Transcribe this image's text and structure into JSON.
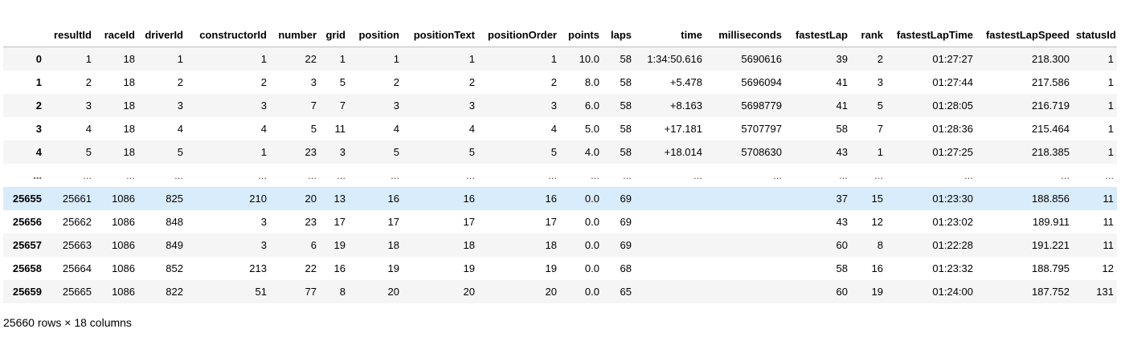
{
  "table": {
    "columns": [
      "",
      "resultId",
      "raceId",
      "driverId",
      "constructorId",
      "number",
      "grid",
      "position",
      "positionText",
      "positionOrder",
      "points",
      "laps",
      "time",
      "milliseconds",
      "fastestLap",
      "rank",
      "fastestLapTime",
      "fastestLapSpeed",
      "statusId"
    ],
    "rows": [
      [
        "0",
        "1",
        "18",
        "1",
        "1",
        "22",
        "1",
        "1",
        "1",
        "1",
        "10.0",
        "58",
        "1:34:50.616",
        "5690616",
        "39",
        "2",
        "01:27:27",
        "218.300",
        "1"
      ],
      [
        "1",
        "2",
        "18",
        "2",
        "2",
        "3",
        "5",
        "2",
        "2",
        "2",
        "8.0",
        "58",
        "+5.478",
        "5696094",
        "41",
        "3",
        "01:27:44",
        "217.586",
        "1"
      ],
      [
        "2",
        "3",
        "18",
        "3",
        "3",
        "7",
        "7",
        "3",
        "3",
        "3",
        "6.0",
        "58",
        "+8.163",
        "5698779",
        "41",
        "5",
        "01:28:05",
        "216.719",
        "1"
      ],
      [
        "3",
        "4",
        "18",
        "4",
        "4",
        "5",
        "11",
        "4",
        "4",
        "4",
        "5.0",
        "58",
        "+17.181",
        "5707797",
        "58",
        "7",
        "01:28:36",
        "215.464",
        "1"
      ],
      [
        "4",
        "5",
        "18",
        "5",
        "1",
        "23",
        "3",
        "5",
        "5",
        "5",
        "4.0",
        "58",
        "+18.014",
        "5708630",
        "43",
        "1",
        "01:27:25",
        "218.385",
        "1"
      ],
      [
        "...",
        "...",
        "...",
        "...",
        "...",
        "...",
        "...",
        "...",
        "...",
        "...",
        "...",
        "...",
        "...",
        "...",
        "...",
        "...",
        "...",
        "...",
        "..."
      ],
      [
        "25655",
        "25661",
        "1086",
        "825",
        "210",
        "20",
        "13",
        "16",
        "16",
        "16",
        "0.0",
        "69",
        "",
        "",
        "37",
        "15",
        "01:23:30",
        "188.856",
        "11"
      ],
      [
        "25656",
        "25662",
        "1086",
        "848",
        "3",
        "23",
        "17",
        "17",
        "17",
        "17",
        "0.0",
        "69",
        "",
        "",
        "43",
        "12",
        "01:23:02",
        "189.911",
        "11"
      ],
      [
        "25657",
        "25663",
        "1086",
        "849",
        "3",
        "6",
        "19",
        "18",
        "18",
        "18",
        "0.0",
        "69",
        "",
        "",
        "60",
        "8",
        "01:22:28",
        "191.221",
        "11"
      ],
      [
        "25658",
        "25664",
        "1086",
        "852",
        "213",
        "22",
        "16",
        "19",
        "19",
        "19",
        "0.0",
        "68",
        "",
        "",
        "58",
        "16",
        "01:23:32",
        "188.795",
        "12"
      ],
      [
        "25659",
        "25665",
        "1086",
        "822",
        "51",
        "77",
        "8",
        "20",
        "20",
        "20",
        "0.0",
        "65",
        "",
        "",
        "60",
        "19",
        "01:24:00",
        "187.752",
        "131"
      ]
    ],
    "highlighted_row": 6,
    "ellipsis_row": 5
  },
  "shape_text": "25660 rows × 18 columns",
  "colors": {
    "stripe": "#f5f5f5",
    "hover": "#d9ecfb",
    "header_border": "#bdbdbd"
  }
}
